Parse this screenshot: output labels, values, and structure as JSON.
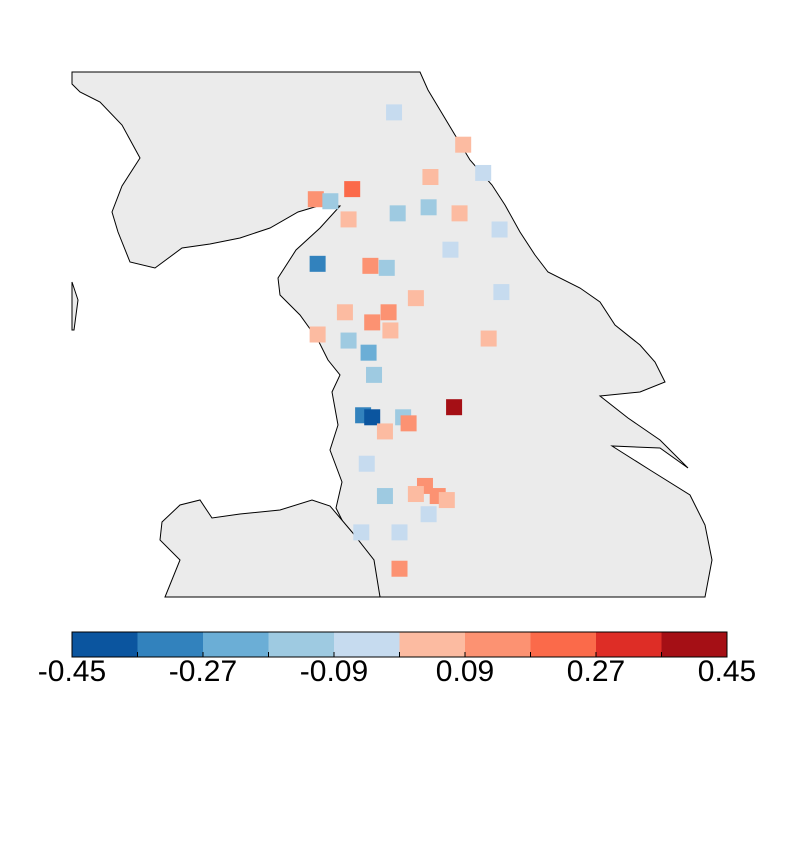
{
  "chart_data": {
    "type": "map",
    "xlim": [
      -3.6,
      0.0
    ],
    "ylim": [
      53.2,
      55.8
    ],
    "colorbar": {
      "bins": [
        -0.45,
        -0.36,
        -0.27,
        -0.18,
        -0.09,
        0,
        0.09,
        0.18,
        0.27,
        0.36,
        0.45
      ],
      "colors": [
        "#0b559f",
        "#3282bd",
        "#6baed6",
        "#9ecae1",
        "#c6dbef",
        "#fcbba1",
        "#fc9272",
        "#fb6a4a",
        "#de2d26",
        "#a50f15"
      ],
      "ticks": [
        -0.45,
        -0.27,
        -0.09,
        0.09,
        0.27,
        0.45
      ]
    },
    "points": {
      "lon": [
        -1.83,
        -1.45,
        -1.34,
        -1.63,
        -2.06,
        -2.26,
        -2.18,
        -2.08,
        -1.81,
        -1.64,
        -1.47,
        -1.25,
        -1.52,
        -2.25,
        -1.96,
        -1.87,
        -1.24,
        -1.71,
        -2.1,
        -1.86,
        -1.95,
        -1.85,
        -2.25,
        -1.31,
        -2.08,
        -1.97,
        -1.94,
        -1.5,
        -2.0,
        -1.95,
        -1.78,
        -1.75,
        -1.88,
        -1.98,
        -1.66,
        -1.88,
        -1.71,
        -1.59,
        -1.54,
        -1.64,
        -2.01,
        -1.8,
        -1.8
      ],
      "lat": [
        55.6,
        55.44,
        55.3,
        55.28,
        55.22,
        55.17,
        55.16,
        55.07,
        55.1,
        55.13,
        55.1,
        55.02,
        54.92,
        54.85,
        54.84,
        54.83,
        54.71,
        54.68,
        54.61,
        54.61,
        54.56,
        54.52,
        54.5,
        54.48,
        54.47,
        54.41,
        54.3,
        54.14,
        54.1,
        54.09,
        54.09,
        54.06,
        54.02,
        53.86,
        53.75,
        53.7,
        53.71,
        53.7,
        53.68,
        53.61,
        53.52,
        53.52,
        53.34
      ],
      "values": [
        -0.04,
        0.04,
        -0.04,
        0.04,
        0.22,
        0.13,
        -0.13,
        0.04,
        -0.13,
        -0.13,
        0.04,
        -0.04,
        -0.04,
        -0.31,
        0.13,
        -0.13,
        -0.04,
        0.04,
        0.04,
        0.13,
        0.13,
        0.04,
        0.04,
        0.04,
        -0.13,
        -0.22,
        -0.13,
        0.4,
        -0.31,
        -0.4,
        -0.13,
        0.13,
        0.04,
        -0.04,
        0.13,
        -0.13,
        0.04,
        0.13,
        0.04,
        -0.04,
        -0.04,
        -0.04,
        0.13
      ]
    }
  }
}
